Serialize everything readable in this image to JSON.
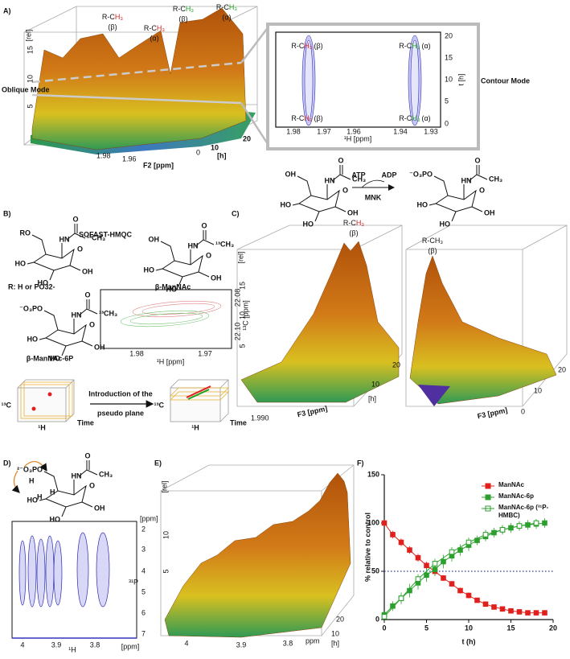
{
  "panel_labels": [
    "A)",
    "B)",
    "C)",
    "D)",
    "E)",
    "F)"
  ],
  "panel_a": {
    "oblique_mode": "Oblique Mode",
    "contour_mode": "Contour Mode",
    "oblique": {
      "peaks": [
        {
          "group": [
            "R-C",
            "H₃"
          ],
          "state": "(β)"
        },
        {
          "group": [
            "R-C",
            "H₃"
          ],
          "state": "(α)"
        },
        {
          "group": [
            "R-C",
            "H₃"
          ],
          "state": "(β)"
        },
        {
          "group": [
            "R-C",
            "H₃"
          ],
          "state": "(α)"
        }
      ],
      "z_label": "[rel]",
      "z_ticks": [
        "15",
        "10",
        "5"
      ],
      "x_ticks": [
        "1.98",
        "1.96"
      ],
      "x_label": "F2 [ppm]",
      "t_ticks": [
        "0",
        "10",
        "20"
      ],
      "t_label": "[h]"
    },
    "contour": {
      "peaks": [
        {
          "group": [
            "R-C",
            "H₃"
          ],
          "state": "(β)"
        },
        {
          "group": [
            "R-C",
            "H₃"
          ],
          "state": "(α)"
        },
        {
          "group": [
            "R-C",
            "H₃"
          ],
          "state": "(β)"
        },
        {
          "group": [
            "R-C",
            "H₃"
          ],
          "state": "(α)"
        }
      ],
      "x_ticks": [
        "1.98",
        "1.97",
        "1.96",
        "1.94",
        "1.93"
      ],
      "x_label": "¹H [ppm]",
      "y_ticks": [
        "20",
        "15",
        "10",
        "5",
        "0"
      ],
      "y_label": "t [h]"
    },
    "reaction": {
      "cofactor_in": "ATP",
      "cofactor_out": "ADP",
      "enzyme": "MNK",
      "substrate_atoms": [
        "OH",
        "HO",
        "HO",
        "HN",
        "O",
        "CH₃",
        "O",
        "OH"
      ],
      "product_atoms": [
        "⁻O₃PO",
        "HO",
        "HO",
        "HN",
        "O",
        "CH₃",
        "O",
        "OH"
      ]
    }
  },
  "panel_b": {
    "experiment": "SOFAST-HMQC",
    "r_group": "R: H or PO32-",
    "generic_atoms": [
      "RO",
      "HO",
      "HO",
      "HN",
      "O",
      "¹³CH₃",
      "O",
      "OH"
    ],
    "manac_name": "β-ManNAc",
    "manac_atoms": [
      "OH",
      "HO",
      "HO",
      "HN",
      "O",
      "¹³CH₃",
      "O",
      "OH"
    ],
    "manac6p_name": "β-ManNAc-6P",
    "manac6p_atoms": [
      "⁻O₃PO",
      "HO",
      "HO",
      "HN",
      "O",
      "¹³CH₃",
      "O",
      "OH"
    ],
    "inset": {
      "x_ticks": [
        "1.98",
        "1.97"
      ],
      "x_label": "¹H [ppm]",
      "y_ticks": [
        "22.08",
        "22.10"
      ],
      "y_label": "¹³C [ppm]"
    },
    "scheme": {
      "arrow_top": "Introduction of the",
      "arrow_bottom": "pseudo plane",
      "axis_c": "¹³C",
      "axis_h": "¹H",
      "axis_t": "Time"
    }
  },
  "panel_c": {
    "peaks": [
      {
        "group": [
          "R-C",
          "H₃"
        ],
        "state": "(β)"
      },
      {
        "group": [
          "R-C",
          "H₃"
        ],
        "state": "(β)"
      }
    ],
    "z_label": "[rel]",
    "z_ticks": [
      "15",
      "10",
      "5"
    ],
    "x_tick": "1.990",
    "x_label": "F3 [ppm]",
    "t_ticks": [
      "10",
      "20",
      "0",
      "10",
      "20"
    ],
    "t_label": "[h]",
    "x_label_right": "F3 [ppm]"
  },
  "panel_d": {
    "atoms": [
      "²⁻O₃PO",
      "HO",
      "HO",
      "HN",
      "O",
      "CH₃",
      "O",
      "OH"
    ],
    "h_labels": [
      "H",
      "H",
      "H"
    ],
    "x_ticks": [
      "4",
      "3.9",
      "3.8"
    ],
    "x_unit": "[ppm]",
    "x_label": "¹H",
    "y_ticks": [
      "2",
      "3",
      "4",
      "5",
      "6",
      "7"
    ],
    "y_unit": "[ppm]",
    "y_label": "³¹P"
  },
  "panel_e": {
    "z_label": "[rel]",
    "z_ticks": [
      "10",
      "5"
    ],
    "x_ticks": [
      "4",
      "3.9",
      "3.8"
    ],
    "x_label": "ppm",
    "t_ticks": [
      "10",
      "20"
    ],
    "t_label": "[h]"
  },
  "chart_data": {
    "type": "line",
    "x_label": "t (h)",
    "y_label": "% relative to control",
    "xlim": [
      0,
      20
    ],
    "xticks": [
      0,
      5,
      10,
      15,
      20
    ],
    "ylim": [
      0,
      150
    ],
    "yticks": [
      0,
      50,
      100,
      150
    ],
    "reference_line": 50,
    "legend": "upper right",
    "series": [
      {
        "name": "ManNAc",
        "color": "#e0201c",
        "marker": "filled",
        "x": [
          0,
          1,
          2,
          3,
          4,
          5,
          6,
          7,
          8,
          9,
          10,
          11,
          12,
          13,
          14,
          15,
          16,
          17,
          18,
          19
        ],
        "values": [
          100,
          88,
          80,
          72,
          64,
          56,
          50,
          43,
          37,
          30,
          25,
          20,
          16,
          13,
          11,
          9,
          8,
          7,
          7,
          7
        ],
        "errors": [
          3,
          4,
          4,
          4,
          4,
          4,
          4,
          3,
          3,
          3,
          3,
          2,
          2,
          2,
          2,
          2,
          2,
          2,
          2,
          2
        ]
      },
      {
        "name": "ManNAc-6p",
        "color": "#2ca02c",
        "marker": "filled",
        "x": [
          0,
          1,
          2,
          3,
          4,
          5,
          6,
          7,
          8,
          9,
          10,
          11,
          12,
          13,
          14,
          15,
          16,
          17,
          18,
          19
        ],
        "values": [
          5,
          14,
          22,
          30,
          38,
          46,
          52,
          60,
          66,
          72,
          77,
          82,
          86,
          90,
          93,
          95,
          97,
          98,
          99,
          100
        ],
        "errors": [
          3,
          5,
          6,
          7,
          7,
          7,
          7,
          7,
          6,
          6,
          6,
          5,
          5,
          5,
          5,
          5,
          5,
          5,
          5,
          5
        ]
      },
      {
        "name": "ManNAc-6p (³¹P-HMBC)",
        "color": "#2ca02c",
        "marker": "open",
        "x": [
          0,
          2,
          4,
          6,
          8,
          10,
          12,
          14,
          16,
          18
        ],
        "values": [
          3,
          22,
          42,
          58,
          70,
          80,
          88,
          93,
          97,
          100
        ],
        "errors": [
          2,
          4,
          5,
          5,
          5,
          5,
          5,
          4,
          4,
          4
        ]
      }
    ]
  }
}
